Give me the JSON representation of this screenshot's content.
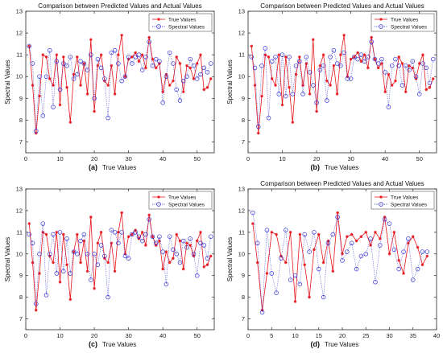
{
  "colors": {
    "true_series": "#e8141b",
    "spectral_series": "#2b2bd6",
    "axis": "#262626"
  },
  "chart_data": [
    {
      "type": "line",
      "panel_label": "(a)",
      "title": "Comparison between Predicted Values and Actual Values",
      "xlabel": "True Values",
      "ylabel": "Spectral Values",
      "xlim": [
        0,
        55
      ],
      "ylim": [
        6.5,
        13
      ],
      "xticks": [
        0,
        10,
        20,
        30,
        40,
        50
      ],
      "yticks": [
        7,
        8,
        9,
        10,
        11,
        12,
        13
      ],
      "legend_position": "top-right",
      "series": [
        {
          "name": "True Values",
          "marker": "asterisk",
          "line": "solid",
          "x": [
            1,
            2,
            3,
            4,
            5,
            6,
            7,
            8,
            9,
            10,
            11,
            12,
            13,
            14,
            15,
            16,
            17,
            18,
            19,
            20,
            21,
            22,
            23,
            24,
            25,
            26,
            27,
            28,
            29,
            30,
            31,
            32,
            33,
            34,
            35,
            36,
            37,
            38,
            39,
            40,
            41,
            42,
            43,
            44,
            45,
            46,
            47,
            48,
            49,
            50,
            51,
            52,
            53,
            54
          ],
          "values": [
            11.4,
            9.6,
            7.4,
            9.1,
            11.0,
            10.9,
            9.9,
            9.6,
            11.0,
            8.7,
            10.9,
            9.5,
            7.9,
            10.1,
            10.9,
            9.6,
            10.6,
            9.2,
            11.7,
            8.4,
            10.5,
            11.0,
            9.8,
            9.6,
            10.5,
            9.2,
            11.0,
            11.9,
            10.0,
            10.8,
            10.9,
            11.1,
            10.7,
            11.0,
            10.4,
            11.8,
            10.8,
            10.4,
            10.6,
            9.3,
            10.1,
            9.6,
            9.8,
            10.9,
            10.6,
            9.3,
            10.5,
            10.4,
            9.9,
            10.6,
            11.0,
            9.4,
            9.5,
            9.9
          ]
        },
        {
          "name": "Spectral Values",
          "marker": "circle",
          "line": "dotted",
          "x": [
            1,
            2,
            3,
            4,
            5,
            6,
            7,
            8,
            9,
            10,
            11,
            12,
            13,
            14,
            15,
            16,
            17,
            18,
            19,
            20,
            21,
            22,
            23,
            24,
            25,
            26,
            27,
            28,
            29,
            30,
            31,
            32,
            33,
            34,
            35,
            36,
            37,
            38,
            39,
            40,
            41,
            42,
            43,
            44,
            45,
            46,
            47,
            48,
            49,
            50,
            51,
            52,
            53,
            54
          ],
          "values": [
            11.4,
            10.6,
            7.5,
            10.0,
            8.2,
            10.0,
            11.2,
            8.6,
            10.7,
            9.4,
            10.6,
            10.5,
            10.9,
            9.9,
            10.1,
            10.7,
            10.6,
            10.3,
            11.0,
            9.0,
            10.8,
            10.4,
            9.9,
            8.1,
            11.1,
            11.2,
            10.6,
            9.8,
            10.0,
            10.9,
            10.6,
            10.9,
            11.0,
            10.3,
            10.9,
            11.6,
            10.5,
            10.8,
            10.7,
            8.8,
            10.0,
            11.1,
            10.6,
            9.4,
            8.9,
            9.8,
            10.0,
            10.8,
            10.5,
            9.9,
            10.1,
            10.4,
            10.2,
            10.6
          ]
        }
      ]
    },
    {
      "type": "line",
      "panel_label": "(b)",
      "title": "Comparison between Predicted Values and Actual Values",
      "xlabel": "True Values",
      "ylabel": "Spectral Values",
      "xlim": [
        0,
        55
      ],
      "ylim": [
        6.5,
        13
      ],
      "xticks": [
        0,
        10,
        20,
        30,
        40,
        50
      ],
      "yticks": [
        7,
        8,
        9,
        10,
        11,
        12,
        13
      ],
      "legend_position": "top-right",
      "series": [
        {
          "name": "True Values",
          "marker": "asterisk",
          "line": "solid",
          "x": [
            1,
            2,
            3,
            4,
            5,
            6,
            7,
            8,
            9,
            10,
            11,
            12,
            13,
            14,
            15,
            16,
            17,
            18,
            19,
            20,
            21,
            22,
            23,
            24,
            25,
            26,
            27,
            28,
            29,
            30,
            31,
            32,
            33,
            34,
            35,
            36,
            37,
            38,
            39,
            40,
            41,
            42,
            43,
            44,
            45,
            46,
            47,
            48,
            49,
            50,
            51,
            52,
            53,
            54
          ],
          "values": [
            11.4,
            9.6,
            7.4,
            9.1,
            11.0,
            10.9,
            9.9,
            9.6,
            11.0,
            8.7,
            10.9,
            9.5,
            7.9,
            10.1,
            10.9,
            9.6,
            10.6,
            9.2,
            11.7,
            8.4,
            10.5,
            11.0,
            9.8,
            9.6,
            10.5,
            9.2,
            11.0,
            11.9,
            10.0,
            10.8,
            10.9,
            11.1,
            10.7,
            11.0,
            10.4,
            11.8,
            10.8,
            10.4,
            10.6,
            9.3,
            10.1,
            9.6,
            9.8,
            10.9,
            10.6,
            9.3,
            10.5,
            10.4,
            9.9,
            10.6,
            11.0,
            9.4,
            9.5,
            9.9
          ]
        },
        {
          "name": "Spectral Values",
          "marker": "circle",
          "line": "dotted",
          "x": [
            1,
            2,
            3,
            4,
            5,
            6,
            7,
            8,
            9,
            10,
            11,
            12,
            13,
            14,
            15,
            16,
            17,
            18,
            19,
            20,
            21,
            22,
            23,
            24,
            25,
            26,
            27,
            28,
            29,
            30,
            31,
            32,
            33,
            34,
            35,
            36,
            37,
            38,
            39,
            40,
            41,
            42,
            43,
            44,
            45,
            46,
            47,
            48,
            49,
            50,
            51,
            52,
            53,
            54
          ],
          "values": [
            10.9,
            10.4,
            7.7,
            10.5,
            11.3,
            8.1,
            10.7,
            10.9,
            9.2,
            11.0,
            9.1,
            10.9,
            9.2,
            10.5,
            10.7,
            9.2,
            10.9,
            10.2,
            9.6,
            8.8,
            10.3,
            10.5,
            8.9,
            10.9,
            11.2,
            10.6,
            10.5,
            11.1,
            9.9,
            9.9,
            10.9,
            10.8,
            11.0,
            10.7,
            10.9,
            11.6,
            10.8,
            10.6,
            10.8,
            10.2,
            8.6,
            10.5,
            10.8,
            10.5,
            9.6,
            10.5,
            10.3,
            10.7,
            10.0,
            9.2,
            10.6,
            10.4,
            9.7,
            10.8
          ]
        }
      ]
    },
    {
      "type": "line",
      "panel_label": "(c)",
      "title": "",
      "xlabel": "True Values",
      "ylabel": "Spectral Values",
      "xlim": [
        0,
        55
      ],
      "ylim": [
        6.5,
        13
      ],
      "xticks": [
        0,
        10,
        20,
        30,
        40,
        50
      ],
      "yticks": [
        7,
        8,
        9,
        10,
        11,
        12,
        13
      ],
      "legend_position": "top-right",
      "series": [
        {
          "name": "True Values",
          "marker": "asterisk",
          "line": "solid",
          "x": [
            1,
            2,
            3,
            4,
            5,
            6,
            7,
            8,
            9,
            10,
            11,
            12,
            13,
            14,
            15,
            16,
            17,
            18,
            19,
            20,
            21,
            22,
            23,
            24,
            25,
            26,
            27,
            28,
            29,
            30,
            31,
            32,
            33,
            34,
            35,
            36,
            37,
            38,
            39,
            40,
            41,
            42,
            43,
            44,
            45,
            46,
            47,
            48,
            49,
            50,
            51,
            52,
            53,
            54
          ],
          "values": [
            11.4,
            9.6,
            7.4,
            9.1,
            11.0,
            10.9,
            9.9,
            9.6,
            11.0,
            8.7,
            10.9,
            9.5,
            7.9,
            10.1,
            10.9,
            9.6,
            10.6,
            9.2,
            11.7,
            8.4,
            10.5,
            11.0,
            9.8,
            9.6,
            10.5,
            9.2,
            11.0,
            11.9,
            10.0,
            10.8,
            10.9,
            11.1,
            10.7,
            11.0,
            10.4,
            11.8,
            10.8,
            10.4,
            10.6,
            9.3,
            10.1,
            9.6,
            9.8,
            10.9,
            10.6,
            9.3,
            10.5,
            10.4,
            9.9,
            10.6,
            11.0,
            9.4,
            9.5,
            9.9
          ]
        },
        {
          "name": "Spectral Values",
          "marker": "circle",
          "line": "dotted",
          "x": [
            1,
            2,
            3,
            4,
            5,
            6,
            7,
            8,
            9,
            10,
            11,
            12,
            13,
            14,
            15,
            16,
            17,
            18,
            19,
            20,
            21,
            22,
            23,
            24,
            25,
            26,
            27,
            28,
            29,
            30,
            31,
            32,
            33,
            34,
            35,
            36,
            37,
            38,
            39,
            40,
            41,
            42,
            43,
            44,
            45,
            46,
            47,
            48,
            49,
            50,
            51,
            52,
            53,
            54
          ],
          "values": [
            10.9,
            10.5,
            7.7,
            10.0,
            11.4,
            8.1,
            10.0,
            10.9,
            9.1,
            11.0,
            9.2,
            10.7,
            9.1,
            10.1,
            10.0,
            10.6,
            10.9,
            10.0,
            8.8,
            10.0,
            9.5,
            10.4,
            9.9,
            8.0,
            11.1,
            11.0,
            10.5,
            11.0,
            9.9,
            9.8,
            10.9,
            11.0,
            10.8,
            10.6,
            10.9,
            11.6,
            10.8,
            10.5,
            10.8,
            10.1,
            8.6,
            10.8,
            10.2,
            10.0,
            9.6,
            10.6,
            10.3,
            10.7,
            10.0,
            9.0,
            10.5,
            10.4,
            9.8,
            10.8
          ]
        }
      ]
    },
    {
      "type": "line",
      "panel_label": "(d)",
      "title": "Comparison between Predicted Values and Actual Values",
      "xlabel": "True Values",
      "ylabel": "Spectral Values",
      "xlim": [
        0,
        40
      ],
      "ylim": [
        6.5,
        13
      ],
      "xticks": [
        0,
        5,
        10,
        15,
        20,
        25,
        30,
        35,
        40
      ],
      "yticks": [
        7,
        8,
        9,
        10,
        11,
        12,
        13
      ],
      "legend_position": "top-right",
      "series": [
        {
          "name": "True Values",
          "marker": "asterisk",
          "line": "solid",
          "x": [
            1,
            2,
            3,
            4,
            5,
            6,
            7,
            8,
            9,
            10,
            11,
            12,
            13,
            14,
            15,
            16,
            17,
            18,
            19,
            20,
            21,
            22,
            23,
            24,
            25,
            26,
            27,
            28,
            29,
            30,
            31,
            32,
            33,
            34,
            35,
            36,
            37,
            38
          ],
          "values": [
            11.4,
            9.6,
            7.4,
            9.1,
            11.0,
            10.9,
            9.9,
            9.6,
            11.0,
            7.8,
            10.9,
            9.5,
            8.0,
            10.2,
            10.9,
            9.6,
            10.6,
            9.2,
            11.9,
            10.0,
            10.8,
            10.9,
            10.6,
            10.8,
            11.0,
            10.4,
            11.0,
            10.7,
            11.7,
            10.0,
            11.0,
            9.7,
            9.1,
            10.5,
            10.8,
            10.3,
            9.5,
            9.9
          ]
        },
        {
          "name": "Spectral Values",
          "marker": "circle",
          "line": "dotted",
          "x": [
            1,
            2,
            3,
            4,
            5,
            6,
            7,
            8,
            9,
            10,
            11,
            12,
            13,
            14,
            15,
            16,
            17,
            18,
            19,
            20,
            21,
            22,
            23,
            24,
            25,
            26,
            27,
            28,
            29,
            30,
            31,
            32,
            33,
            34,
            35,
            36,
            37,
            38
          ],
          "values": [
            11.9,
            10.5,
            7.3,
            11.1,
            9.1,
            8.2,
            9.8,
            11.1,
            8.8,
            9.0,
            8.6,
            10.9,
            10.1,
            11.0,
            9.3,
            8.0,
            10.5,
            10.9,
            11.7,
            9.7,
            10.1,
            10.5,
            9.3,
            9.9,
            10.0,
            10.7,
            8.7,
            10.4,
            11.6,
            11.4,
            10.2,
            9.3,
            10.1,
            10.7,
            8.8,
            9.3,
            10.1,
            10.1
          ]
        }
      ]
    }
  ]
}
